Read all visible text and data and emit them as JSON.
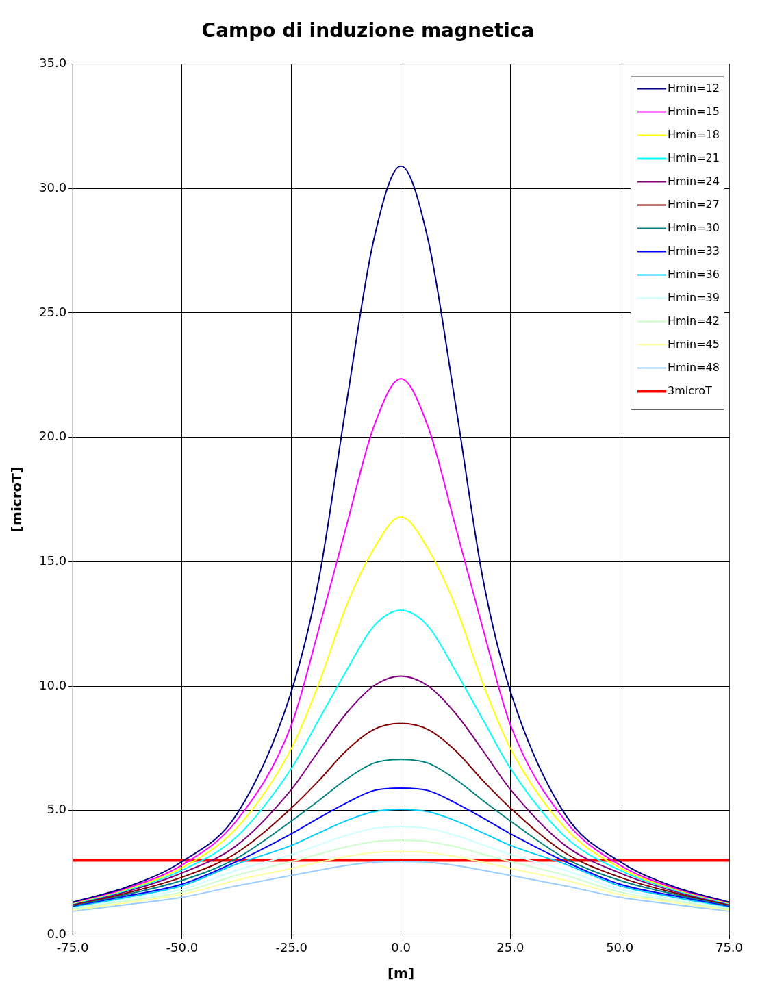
{
  "chart_data": {
    "type": "line",
    "title": "Campo di induzione magnetica",
    "xlabel": "[m]",
    "ylabel": "[microT]",
    "x": [
      -75,
      -62.5,
      -50,
      -37.5,
      -25,
      -18.75,
      -12.5,
      -6.25,
      0,
      6.25,
      12.5,
      18.75,
      25,
      37.5,
      50,
      62.5,
      75
    ],
    "xlim": [
      -75,
      75
    ],
    "xticks": [
      {
        "value": -75,
        "label": "-75.0"
      },
      {
        "value": -50,
        "label": "-50.0"
      },
      {
        "value": -25,
        "label": "-25.0"
      },
      {
        "value": 0,
        "label": "0.0"
      },
      {
        "value": 25,
        "label": "25.0"
      },
      {
        "value": 50,
        "label": "50.0"
      },
      {
        "value": 75,
        "label": "75.0"
      }
    ],
    "ylim": [
      0,
      35
    ],
    "yticks": [
      {
        "value": 0,
        "label": "0.0"
      },
      {
        "value": 5,
        "label": "5.0"
      },
      {
        "value": 10,
        "label": "10.0"
      },
      {
        "value": 15,
        "label": "15.0"
      },
      {
        "value": 20,
        "label": "20.0"
      },
      {
        "value": 25,
        "label": "25.0"
      },
      {
        "value": 30,
        "label": "30.0"
      },
      {
        "value": 35,
        "label": "35.0"
      }
    ],
    "grid": true,
    "legend": "top right",
    "marker": "none",
    "line_style": "solid",
    "series": [
      {
        "name": "Hmin=12",
        "color": "#000080",
        "values": [
          1.32,
          1.93,
          2.95,
          4.85,
          9.8,
          14.3,
          21.3,
          27.9,
          30.9,
          27.9,
          21.3,
          14.3,
          9.8,
          4.85,
          2.95,
          1.93,
          1.32
        ]
      },
      {
        "name": "Hmin=15",
        "color": "#ff00ff",
        "values": [
          1.3,
          1.88,
          2.81,
          4.6,
          8.45,
          12.3,
          16.4,
          20.4,
          22.35,
          20.4,
          16.4,
          12.3,
          8.45,
          4.6,
          2.81,
          1.88,
          1.3
        ]
      },
      {
        "name": "Hmin=18",
        "color": "#ffff00",
        "values": [
          1.28,
          1.84,
          2.7,
          4.3,
          7.5,
          10.1,
          13.2,
          15.5,
          16.8,
          15.5,
          13.2,
          10.1,
          7.5,
          4.3,
          2.7,
          1.84,
          1.28
        ]
      },
      {
        "name": "Hmin=21",
        "color": "#00ffff",
        "values": [
          1.26,
          1.8,
          2.6,
          3.95,
          6.7,
          8.65,
          10.6,
          12.4,
          13.05,
          12.4,
          10.6,
          8.65,
          6.7,
          3.95,
          2.6,
          1.8,
          1.26
        ]
      },
      {
        "name": "Hmin=24",
        "color": "#800080",
        "values": [
          1.24,
          1.75,
          2.49,
          3.6,
          5.85,
          7.4,
          8.9,
          10.0,
          10.4,
          10.0,
          8.9,
          7.4,
          5.85,
          3.6,
          2.49,
          1.75,
          1.24
        ]
      },
      {
        "name": "Hmin=27",
        "color": "#800000",
        "values": [
          1.21,
          1.69,
          2.32,
          3.3,
          5.1,
          6.2,
          7.4,
          8.25,
          8.5,
          8.25,
          7.4,
          6.2,
          5.1,
          3.3,
          2.32,
          1.69,
          1.21
        ]
      },
      {
        "name": "Hmin=30",
        "color": "#008080",
        "values": [
          1.19,
          1.63,
          2.19,
          3.08,
          4.58,
          5.4,
          6.25,
          6.9,
          7.05,
          6.9,
          6.25,
          5.4,
          4.58,
          3.08,
          2.19,
          1.63,
          1.19
        ]
      },
      {
        "name": "Hmin=33",
        "color": "#0000ff",
        "values": [
          1.16,
          1.57,
          2.04,
          2.95,
          4.07,
          4.7,
          5.3,
          5.8,
          5.9,
          5.8,
          5.3,
          4.7,
          4.07,
          2.95,
          2.04,
          1.57,
          1.16
        ]
      },
      {
        "name": "Hmin=36",
        "color": "#00ccff",
        "values": [
          1.13,
          1.51,
          1.97,
          2.85,
          3.6,
          4.1,
          4.59,
          4.95,
          5.05,
          4.95,
          4.59,
          4.1,
          3.6,
          2.85,
          1.97,
          1.51,
          1.13
        ]
      },
      {
        "name": "Hmin=39",
        "color": "#ccffff",
        "values": [
          1.09,
          1.44,
          1.83,
          2.6,
          3.23,
          3.62,
          4.0,
          4.28,
          4.35,
          4.28,
          4.0,
          3.62,
          3.23,
          2.6,
          1.83,
          1.44,
          1.09
        ]
      },
      {
        "name": "Hmin=42",
        "color": "#ccffcc",
        "values": [
          1.05,
          1.37,
          1.72,
          2.4,
          2.95,
          3.25,
          3.54,
          3.75,
          3.8,
          3.75,
          3.54,
          3.25,
          2.95,
          2.4,
          1.72,
          1.37,
          1.05
        ]
      },
      {
        "name": "Hmin=45",
        "color": "#ffff99",
        "values": [
          1.0,
          1.3,
          1.63,
          2.2,
          2.67,
          2.92,
          3.15,
          3.31,
          3.35,
          3.31,
          3.15,
          2.92,
          2.67,
          2.2,
          1.63,
          1.3,
          1.0
        ]
      },
      {
        "name": "Hmin=48",
        "color": "#99ccff",
        "values": [
          0.95,
          1.22,
          1.51,
          1.97,
          2.39,
          2.6,
          2.79,
          2.92,
          2.95,
          2.92,
          2.79,
          2.6,
          2.39,
          1.97,
          1.51,
          1.22,
          0.95
        ]
      },
      {
        "name": "3microT",
        "color": "#ff0000",
        "x": [
          -75,
          75
        ],
        "values": [
          3,
          3
        ]
      }
    ]
  }
}
